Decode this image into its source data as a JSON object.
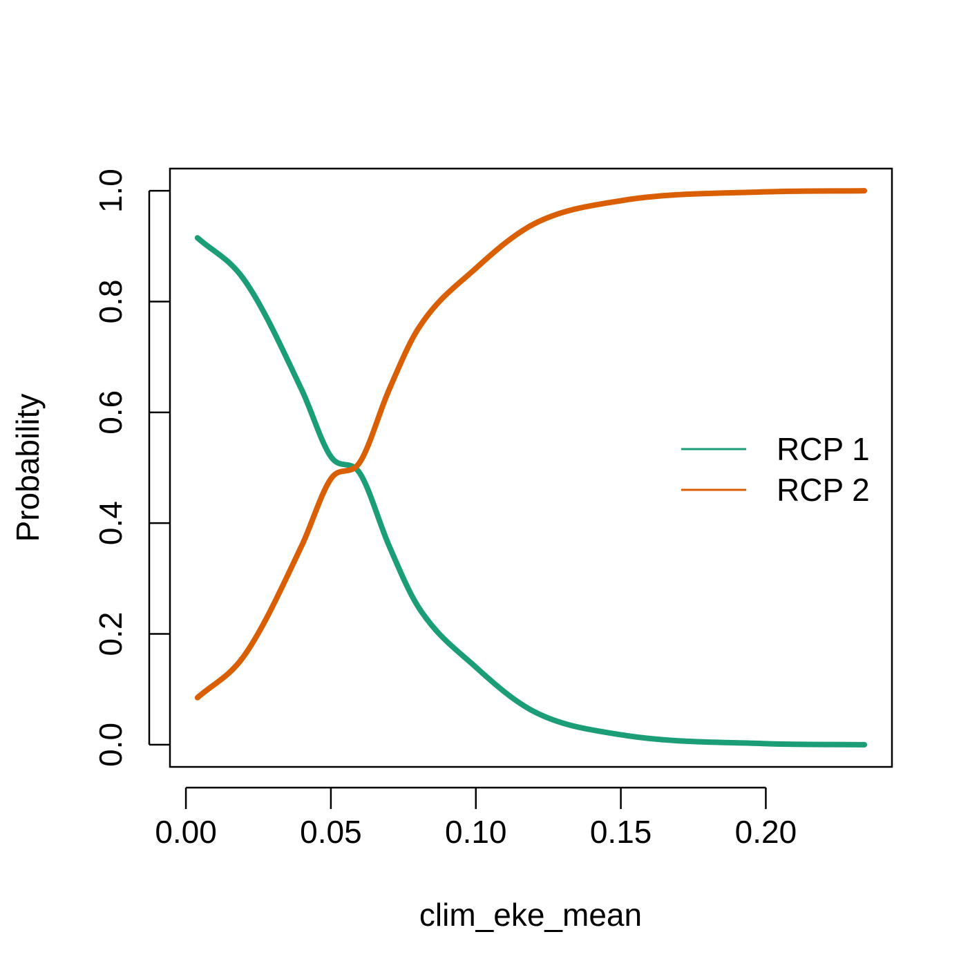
{
  "chart_data": {
    "type": "line",
    "xlabel": "clim_eke_mean",
    "ylabel": "Probability",
    "xlim": [
      -0.0055,
      0.2435
    ],
    "ylim": [
      -0.04,
      1.04
    ],
    "xticks": [
      0.0,
      0.05,
      0.1,
      0.15,
      0.2
    ],
    "xtick_labels": [
      "0.00",
      "0.05",
      "0.10",
      "0.15",
      "0.20"
    ],
    "yticks": [
      0.0,
      0.2,
      0.4,
      0.6,
      0.8,
      1.0
    ],
    "ytick_labels": [
      "0.0",
      "0.2",
      "0.4",
      "0.6",
      "0.8",
      "1.0"
    ],
    "grid": false,
    "legend_position": "right",
    "series": [
      {
        "name": "RCP 1",
        "color": "#1B9E77",
        "x": [
          0.004,
          0.02,
          0.04,
          0.05,
          0.06,
          0.07,
          0.08,
          0.1,
          0.12,
          0.15,
          0.2,
          0.234
        ],
        "y": [
          0.915,
          0.84,
          0.64,
          0.52,
          0.49,
          0.36,
          0.25,
          0.14,
          0.06,
          0.018,
          0.002,
          0.0
        ]
      },
      {
        "name": "RCP 2",
        "color": "#D95F02",
        "x": [
          0.004,
          0.02,
          0.04,
          0.05,
          0.06,
          0.07,
          0.08,
          0.1,
          0.12,
          0.15,
          0.2,
          0.234
        ],
        "y": [
          0.085,
          0.16,
          0.36,
          0.48,
          0.51,
          0.64,
          0.75,
          0.86,
          0.94,
          0.982,
          0.998,
          1.0
        ]
      }
    ]
  }
}
